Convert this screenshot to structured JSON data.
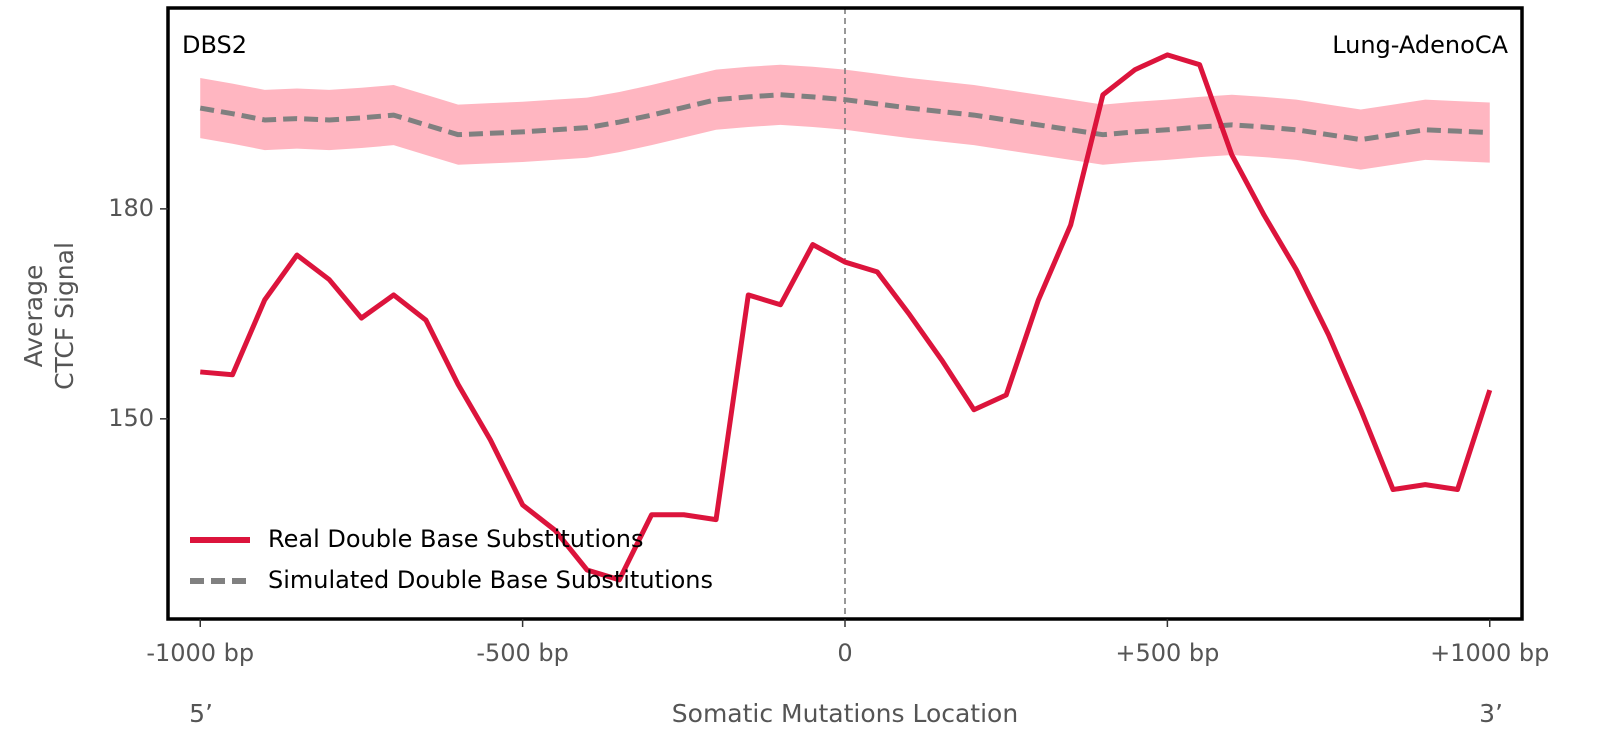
{
  "chart_data": {
    "type": "line",
    "annotations": [
      "DBS2",
      "Lung-AdenoCA"
    ],
    "xlabel": "Somatic Mutations Location",
    "xlabel_ends": [
      "5’",
      "3’"
    ],
    "ylabel": [
      "Average",
      "CTCF Signal"
    ],
    "x": [
      -1000,
      -950,
      -900,
      -850,
      -800,
      -750,
      -700,
      -650,
      -600,
      -550,
      -500,
      -450,
      -400,
      -350,
      -300,
      -250,
      -200,
      -150,
      -100,
      -50,
      0,
      50,
      100,
      150,
      200,
      250,
      300,
      350,
      400,
      450,
      500,
      550,
      600,
      650,
      700,
      750,
      800,
      850,
      900,
      950,
      1000
    ],
    "series": [
      {
        "name": "Real Double Base Substitutions",
        "color": "#dc143c",
        "values": [
          156.7,
          156.3,
          167,
          173.4,
          169.9,
          164.4,
          167.7,
          164.1,
          154.9,
          147,
          137.7,
          134.1,
          128.4,
          127,
          136.3,
          136.3,
          135.6,
          167.7,
          166.3,
          174.9,
          172.4,
          171,
          164.9,
          158.4,
          151.3,
          153.4,
          167,
          177.7,
          196.3,
          199.9,
          202,
          200.6,
          187.7,
          179.1,
          171.3,
          162,
          151.3,
          139.9,
          140.6,
          139.9,
          154.1
        ]
      },
      {
        "name": "Simulated Double Base Substitutions",
        "color": "#808080",
        "band_color": "#ffb6c1",
        "error": 4.3,
        "values": [
          194.4,
          193.6,
          192.7,
          192.9,
          192.7,
          193.0,
          193.4,
          192.0,
          190.6,
          190.8,
          191.0,
          191.3,
          191.6,
          192.4,
          193.4,
          194.5,
          195.6,
          196.0,
          196.3,
          196.0,
          195.6,
          195.0,
          194.4,
          193.9,
          193.4,
          192.7,
          192.0,
          191.3,
          190.6,
          191.0,
          191.3,
          191.7,
          192.0,
          191.7,
          191.3,
          190.6,
          189.9,
          190.6,
          191.3,
          191.1,
          190.9
        ]
      }
    ],
    "xlim": [
      -1050,
      1050
    ],
    "xticks": [
      {
        "value": -1000,
        "label": "-1000 bp"
      },
      {
        "value": -500,
        "label": "-500 bp"
      },
      0,
      {
        "value": 500,
        "label": "+500 bp"
      },
      {
        "value": 1000,
        "label": "+1000 bp"
      }
    ],
    "ylim": [
      121.4,
      208.7
    ],
    "yticks": [
      150,
      180
    ],
    "vline": 0,
    "legend": "lower left"
  }
}
